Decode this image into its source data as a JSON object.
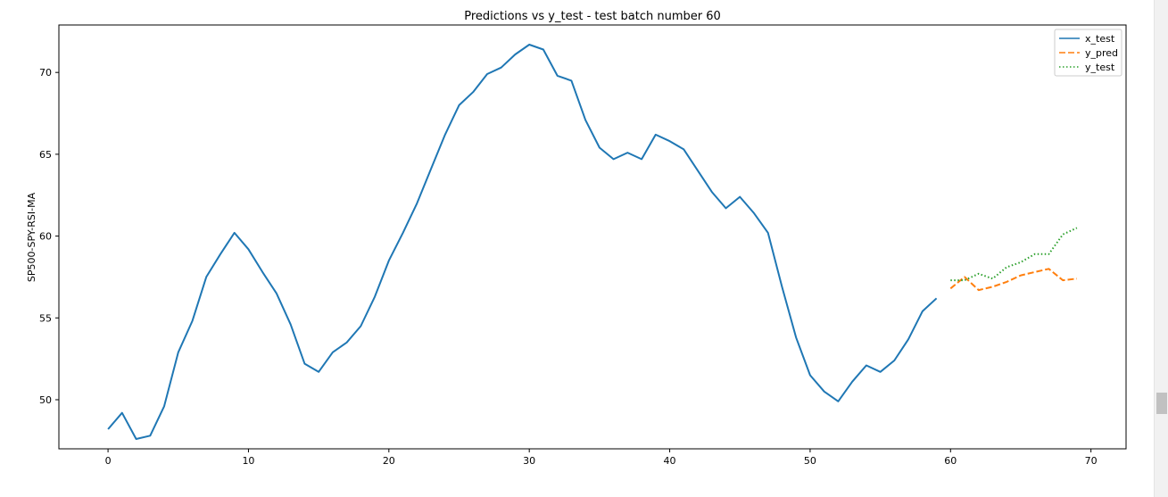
{
  "chart_data": {
    "type": "line",
    "title": "Predictions vs y_test - test batch number 60",
    "xlabel": "",
    "ylabel": "SP500-SPY-RSI-MA",
    "xlim": [
      -3.5,
      72.5
    ],
    "ylim": [
      47.0,
      72.9
    ],
    "xticks": [
      0,
      10,
      20,
      30,
      40,
      50,
      60,
      70
    ],
    "yticks": [
      50,
      55,
      60,
      65,
      70
    ],
    "legend_position": "top-right",
    "series": [
      {
        "name": "x_test",
        "color": "#1f77b4",
        "style": "solid",
        "x": [
          0,
          1,
          2,
          3,
          4,
          5,
          6,
          7,
          8,
          9,
          10,
          11,
          12,
          13,
          14,
          15,
          16,
          17,
          18,
          19,
          20,
          21,
          22,
          23,
          24,
          25,
          26,
          27,
          28,
          29,
          30,
          31,
          32,
          33,
          34,
          35,
          36,
          37,
          38,
          39,
          40,
          41,
          42,
          43,
          44,
          45,
          46,
          47,
          48,
          49,
          50,
          51,
          52,
          53,
          54,
          55,
          56,
          57,
          58,
          59
        ],
        "y": [
          48.2,
          49.2,
          47.6,
          47.8,
          49.6,
          52.9,
          54.8,
          57.5,
          58.9,
          60.2,
          59.2,
          57.8,
          56.5,
          54.6,
          52.2,
          51.7,
          52.9,
          53.5,
          54.5,
          56.3,
          58.5,
          60.2,
          62.0,
          64.1,
          66.2,
          68.0,
          68.8,
          69.9,
          70.3,
          71.1,
          71.7,
          71.4,
          69.8,
          69.5,
          67.1,
          65.4,
          64.7,
          65.1,
          64.7,
          66.2,
          65.8,
          65.3,
          64.0,
          62.7,
          61.7,
          62.4,
          61.4,
          60.2,
          56.9,
          53.8,
          51.5,
          50.5,
          49.9,
          51.1,
          52.1,
          51.7,
          52.4,
          53.7,
          55.4,
          56.2
        ]
      },
      {
        "name": "y_pred",
        "color": "#ff7f0e",
        "style": "dashed",
        "x": [
          60,
          61,
          62,
          63,
          64,
          65,
          66,
          67,
          68,
          69
        ],
        "y": [
          56.8,
          57.5,
          56.7,
          56.9,
          57.2,
          57.6,
          57.8,
          58.0,
          57.3,
          57.4
        ]
      },
      {
        "name": "y_test",
        "color": "#2ca02c",
        "style": "dotted",
        "x": [
          60,
          61,
          62,
          63,
          64,
          65,
          66,
          67,
          68,
          69
        ],
        "y": [
          57.3,
          57.3,
          57.7,
          57.4,
          58.1,
          58.4,
          58.9,
          58.9,
          60.1,
          60.5
        ]
      }
    ]
  }
}
